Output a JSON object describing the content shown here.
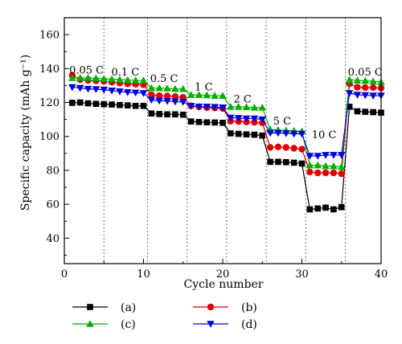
{
  "chart_data": {
    "type": "line",
    "title": "",
    "xlabel": "Cycle number",
    "ylabel": "Specific capacity (mAh g⁻¹)",
    "xlim": [
      0,
      40
    ],
    "ylim": [
      25,
      170
    ],
    "xticks": [
      0,
      10,
      20,
      30,
      40
    ],
    "yticks": [
      40,
      60,
      80,
      100,
      120,
      140,
      160
    ],
    "grid": false,
    "separators_x": [
      5,
      10.5,
      15.5,
      20.5,
      25.5,
      30.5,
      35.5
    ],
    "legend_position": "bottom",
    "rate_labels": [
      {
        "text": "0.05 C",
        "x": 2.8,
        "y": 137
      },
      {
        "text": "0.1 C",
        "x": 7.7,
        "y": 136
      },
      {
        "text": "0.5 C",
        "x": 12.6,
        "y": 132
      },
      {
        "text": "1 C",
        "x": 17.6,
        "y": 127
      },
      {
        "text": "2 C",
        "x": 22.5,
        "y": 120
      },
      {
        "text": "5 C",
        "x": 27.5,
        "y": 107
      },
      {
        "text": "10 C",
        "x": 32.8,
        "y": 99
      },
      {
        "text": "0.05 C",
        "x": 38.0,
        "y": 136
      }
    ],
    "series": [
      {
        "name": "(a)",
        "color": "#000000",
        "marker": "square",
        "x": [
          1,
          2,
          3,
          4,
          5,
          6,
          7,
          8,
          9,
          10,
          11,
          12,
          13,
          14,
          15,
          16,
          17,
          18,
          19,
          20,
          21,
          22,
          23,
          24,
          25,
          26,
          27,
          28,
          29,
          30,
          31,
          32,
          33,
          34,
          35,
          36,
          37,
          38,
          39,
          40
        ],
        "values": [
          119.8,
          120.0,
          119.5,
          119.2,
          119.0,
          118.8,
          118.5,
          118.3,
          118.0,
          118.0,
          113.5,
          113.2,
          113.0,
          113.0,
          112.8,
          108.8,
          108.5,
          108.3,
          108.2,
          108.0,
          101.8,
          101.5,
          101.2,
          101.0,
          100.5,
          85.0,
          85.0,
          84.8,
          84.5,
          84.0,
          57.0,
          57.5,
          58.0,
          57.0,
          58.3,
          117.5,
          114.8,
          114.5,
          114.3,
          114.0
        ]
      },
      {
        "name": "(b)",
        "color": "#e00000",
        "marker": "circle",
        "x": [
          1,
          2,
          3,
          4,
          5,
          6,
          7,
          8,
          9,
          10,
          11,
          12,
          13,
          14,
          15,
          16,
          17,
          18,
          19,
          20,
          21,
          22,
          23,
          24,
          25,
          26,
          27,
          28,
          29,
          30,
          31,
          32,
          33,
          34,
          35,
          36,
          37,
          38,
          39,
          40
        ],
        "values": [
          136.0,
          133.5,
          133.0,
          132.8,
          132.5,
          132.0,
          131.5,
          131.0,
          130.8,
          130.5,
          124.5,
          124.0,
          123.8,
          123.5,
          123.0,
          118.0,
          117.5,
          117.0,
          116.8,
          116.5,
          109.0,
          108.8,
          108.5,
          108.3,
          108.0,
          93.5,
          93.8,
          93.5,
          93.0,
          92.5,
          79.0,
          78.5,
          78.5,
          78.5,
          78.0,
          131.0,
          129.0,
          128.8,
          128.8,
          128.5
        ]
      },
      {
        "name": "(c)",
        "color": "#00b000",
        "marker": "triangle-up",
        "x": [
          1,
          2,
          3,
          4,
          5,
          6,
          7,
          8,
          9,
          10,
          11,
          12,
          13,
          14,
          15,
          16,
          17,
          18,
          19,
          20,
          21,
          22,
          23,
          24,
          25,
          26,
          27,
          28,
          29,
          30,
          31,
          32,
          33,
          34,
          35,
          36,
          37,
          38,
          39,
          40
        ],
        "values": [
          134.5,
          134.5,
          134.5,
          134.3,
          134.0,
          133.8,
          133.5,
          133.3,
          133.0,
          133.0,
          128.5,
          128.5,
          128.3,
          128.0,
          128.0,
          124.5,
          124.5,
          124.3,
          124.0,
          124.0,
          117.5,
          117.5,
          117.3,
          117.0,
          117.0,
          104.0,
          103.8,
          103.5,
          103.3,
          103.0,
          83.0,
          83.0,
          82.5,
          82.5,
          82.0,
          133.5,
          133.0,
          132.8,
          132.5,
          132.0
        ]
      },
      {
        "name": "(d)",
        "color": "#0000e0",
        "marker": "triangle-down",
        "x": [
          1,
          2,
          3,
          4,
          5,
          6,
          7,
          8,
          9,
          10,
          11,
          12,
          13,
          14,
          15,
          16,
          17,
          18,
          19,
          20,
          21,
          22,
          23,
          24,
          25,
          26,
          27,
          28,
          29,
          30,
          31,
          32,
          33,
          34,
          35,
          36,
          37,
          38,
          39,
          40
        ],
        "values": [
          129.0,
          128.5,
          128.0,
          127.8,
          127.5,
          127.0,
          126.5,
          126.0,
          125.8,
          125.5,
          121.5,
          121.0,
          120.8,
          120.5,
          120.3,
          118.0,
          117.5,
          117.5,
          117.3,
          117.0,
          111.0,
          110.8,
          110.5,
          110.5,
          110.0,
          102.0,
          102.0,
          101.8,
          101.5,
          101.5,
          88.5,
          88.5,
          89.0,
          89.0,
          89.0,
          125.5,
          124.5,
          124.3,
          124.0,
          124.0
        ]
      }
    ]
  }
}
